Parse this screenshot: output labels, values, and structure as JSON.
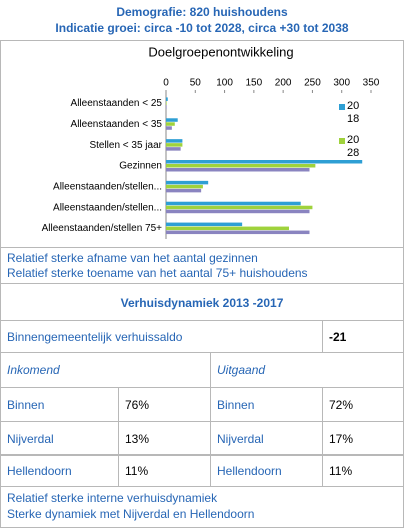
{
  "header": {
    "title": "Demografie: 820 huishoudens",
    "subtitle": "Indicatie groei: circa -10 tot 2028, circa +30 tot 2038"
  },
  "chart_data": {
    "type": "hbar",
    "title": "Doelgroepenontwikkeling",
    "categories": [
      "Alleenstaanden < 25",
      "Alleenstaanden < 35",
      "Stellen < 35 jaar",
      "Gezinnen",
      "Alleenstaanden/stellen...",
      "Alleenstaanden/stellen...",
      "Alleenstaanden/stellen 75+"
    ],
    "series": [
      {
        "name": "2018",
        "color": "#2e9fd4",
        "values": [
          3,
          20,
          28,
          335,
          72,
          230,
          130
        ]
      },
      {
        "name": "2028",
        "color": "#9fd23c",
        "values": [
          1,
          15,
          28,
          255,
          63,
          250,
          210
        ]
      },
      {
        "color": "#8a84c0",
        "values": [
          1,
          10,
          25,
          245,
          60,
          245,
          245
        ]
      }
    ],
    "xlim": [
      0,
      350
    ],
    "xticks": [
      0,
      50,
      100,
      150,
      200,
      250,
      300,
      350
    ]
  },
  "notes": [
    "Relatief sterke afname van het aantal gezinnen",
    "Relatief sterke toename van het aantal 75+ huishoudens"
  ],
  "section_title": "Verhuisdynamiek 2013 -2017",
  "saldo": {
    "label": "Binnengemeentelijk verhuissaldo",
    "value": "-21"
  },
  "columns": [
    "Inkomend",
    "Uitgaand"
  ],
  "rows": [
    [
      "Binnen",
      "76%",
      "Binnen",
      "72%"
    ],
    [
      "Nijverdal",
      "13%",
      "Nijverdal",
      "17%"
    ],
    [
      "Hellendoorn",
      "11%",
      "Hellendoorn",
      "11%"
    ]
  ],
  "footer": [
    "Relatief sterke interne verhuisdynamiek",
    "Sterke dynamiek met Nijverdal en Hellendoorn"
  ]
}
